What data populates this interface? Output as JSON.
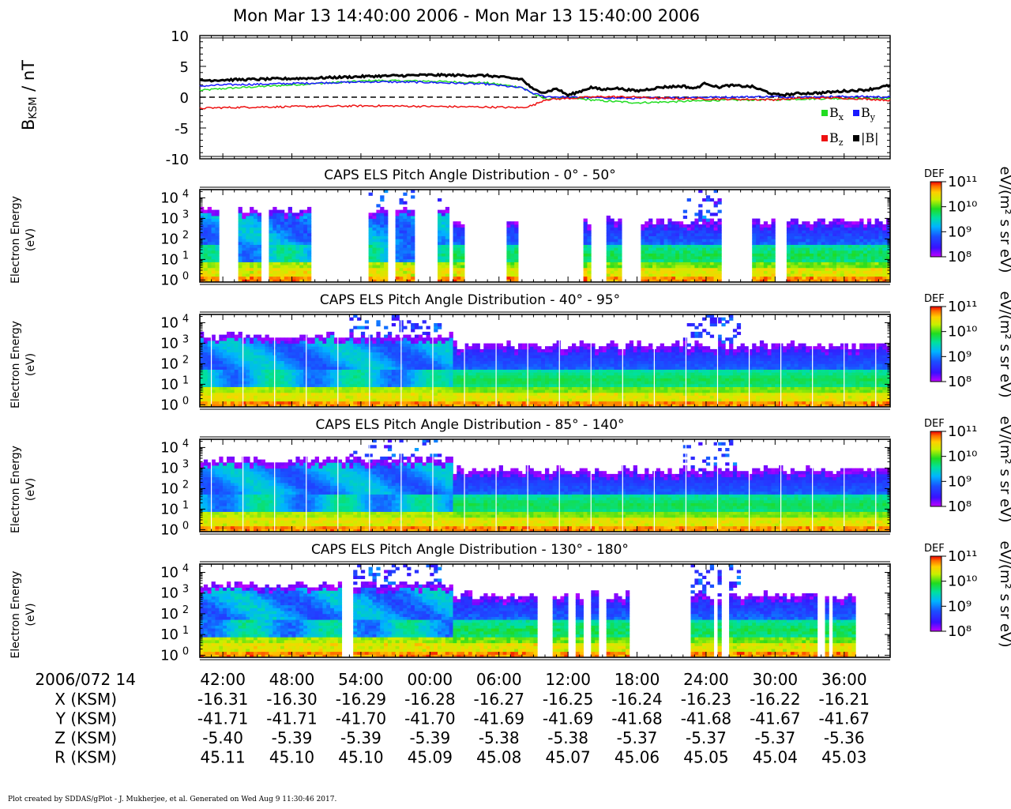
{
  "title": "Mon Mar 13 14:40:00 2006 - Mon Mar 13 15:40:00 2006",
  "footer": "Plot created by SDDAS/gPlot - J. Mukherjee, et al.  Generated on Wed Aug 9 11:30:46 2017.",
  "colors": {
    "bx": "#22dd22",
    "by": "#1a1aff",
    "bz": "#ee1111",
    "btot": "#000000"
  },
  "chart_data": [
    {
      "type": "line",
      "ylabel": "BKSM / nT",
      "ylabel_main": "B",
      "ylabel_sub": "KSM",
      "ylabel_unit": " / nT",
      "ylim": [
        -10,
        10
      ],
      "yticks": [
        "10",
        "5",
        "0",
        "-5",
        "-10"
      ],
      "xlim_minutes": [
        0,
        60
      ],
      "zero_line": "dashed",
      "legend_position": "bottom-right",
      "legend": [
        {
          "main": "B",
          "sub": "x"
        },
        {
          "main": "B",
          "sub": "y"
        },
        {
          "main": "B",
          "sub": "z"
        },
        {
          "main": "|B|",
          "sub": ""
        }
      ],
      "series": [
        {
          "name": "Bx",
          "x": [
            0,
            2,
            5,
            10,
            15,
            20,
            25,
            28,
            29,
            30,
            32,
            35,
            38,
            40,
            45,
            50,
            52,
            55,
            58,
            60
          ],
          "y": [
            1.1,
            1.4,
            1.7,
            2.2,
            2.7,
            2.6,
            2.3,
            1.6,
            0.5,
            -0.3,
            -0.1,
            -0.6,
            -0.9,
            -0.8,
            -0.5,
            -0.4,
            -0.3,
            -0.2,
            -0.2,
            -0.3
          ]
        },
        {
          "name": "By",
          "x": [
            0,
            2,
            5,
            10,
            15,
            20,
            25,
            28,
            29,
            30,
            32,
            35,
            38,
            40,
            45,
            50,
            52,
            55,
            58,
            60
          ],
          "y": [
            1.8,
            2.0,
            2.1,
            2.3,
            2.5,
            2.4,
            2.1,
            1.5,
            0.6,
            0.1,
            0.0,
            -0.1,
            -0.2,
            -0.1,
            0.0,
            0.1,
            0.0,
            0.1,
            0.1,
            0.0
          ]
        },
        {
          "name": "Bz",
          "x": [
            0,
            2,
            5,
            10,
            15,
            20,
            25,
            28,
            29,
            30,
            32,
            35,
            38,
            40,
            45,
            50,
            52,
            55,
            58,
            60
          ],
          "y": [
            -1.8,
            -1.7,
            -1.6,
            -1.5,
            -1.4,
            -1.5,
            -1.6,
            -1.7,
            -1.3,
            -0.4,
            -0.2,
            0.1,
            0.0,
            -0.2,
            -0.3,
            -0.4,
            -0.2,
            -0.1,
            -0.3,
            -0.5
          ]
        },
        {
          "name": "|B|",
          "x": [
            0,
            2,
            5,
            10,
            15,
            20,
            25,
            28,
            29,
            30,
            31,
            32,
            33,
            34,
            35,
            36,
            38,
            40,
            42,
            43,
            44,
            45,
            46,
            48,
            50,
            51,
            52,
            54,
            56,
            58,
            60
          ],
          "y": [
            2.7,
            2.8,
            2.9,
            3.1,
            3.4,
            3.6,
            3.5,
            2.9,
            1.2,
            0.8,
            1.4,
            0.3,
            0.9,
            1.6,
            1.2,
            1.5,
            1.0,
            1.6,
            1.8,
            1.4,
            2.3,
            1.6,
            1.9,
            1.7,
            0.4,
            0.4,
            0.6,
            0.7,
            1.0,
            1.2,
            1.9
          ]
        }
      ]
    },
    {
      "type": "heatmap",
      "title": "CAPS ELS Pitch Angle Distribution - 0° - 50°",
      "ylabel": "Electron Energy (eV)",
      "ylabel_line1": "Electron Energy",
      "ylabel_line2": "(eV)",
      "y_scale": "log",
      "ylim_log10": [
        -0.1,
        4.4
      ],
      "yticks_exp": [
        "4",
        "3",
        "2",
        "1",
        "0"
      ],
      "data_gaps_minutes": [
        [
          1.6,
          3.4
        ],
        [
          5.2,
          6.1
        ],
        [
          9.6,
          14.8
        ],
        [
          16.2,
          16.9
        ],
        [
          18.8,
          20.7
        ],
        [
          21.6,
          22.1
        ],
        [
          23.1,
          26.6
        ],
        [
          27.7,
          33.3
        ],
        [
          34.0,
          35.4
        ],
        [
          36.7,
          38.2
        ],
        [
          45.4,
          48.0
        ],
        [
          50.0,
          51.1
        ]
      ],
      "variability": "patchy",
      "colorbar_label": "DEF",
      "colorbar_unit": "eV/(m² s sr eV)",
      "colorbar_ticks": [
        "10¹¹",
        "10¹⁰",
        "10⁹",
        "10⁸"
      ]
    },
    {
      "type": "heatmap",
      "title": "CAPS ELS Pitch Angle Distribution - 40° - 95°",
      "ylabel": "Electron Energy (eV)",
      "ylabel_line1": "Electron Energy",
      "ylabel_line2": "(eV)",
      "y_scale": "log",
      "ylim_log10": [
        -0.1,
        4.4
      ],
      "yticks_exp": [
        "4",
        "3",
        "2",
        "1",
        "0"
      ],
      "data_gaps_minutes": [],
      "variability": "smooth",
      "colorbar_label": "DEF",
      "colorbar_unit": "eV/(m² s sr eV)",
      "colorbar_ticks": [
        "10¹¹",
        "10¹⁰",
        "10⁹",
        "10⁸"
      ]
    },
    {
      "type": "heatmap",
      "title": "CAPS ELS Pitch Angle Distribution - 85° - 140°",
      "ylabel": "Electron Energy (eV)",
      "ylabel_line1": "Electron Energy",
      "ylabel_line2": "(eV)",
      "y_scale": "log",
      "ylim_log10": [
        -0.1,
        4.4
      ],
      "yticks_exp": [
        "4",
        "3",
        "2",
        "1",
        "0"
      ],
      "data_gaps_minutes": [],
      "variability": "smooth",
      "colorbar_label": "DEF",
      "colorbar_unit": "eV/(m² s sr eV)",
      "colorbar_ticks": [
        "10¹¹",
        "10¹⁰",
        "10⁹",
        "10⁸"
      ]
    },
    {
      "type": "heatmap",
      "title": "CAPS ELS Pitch Angle Distribution - 130° - 180°",
      "ylabel": "Electron Energy (eV)",
      "ylabel_line1": "Electron Energy",
      "ylabel_line2": "(eV)",
      "y_scale": "log",
      "ylim_log10": [
        -0.1,
        4.4
      ],
      "yticks_exp": [
        "4",
        "3",
        "2",
        "1",
        "0"
      ],
      "data_gaps_minutes": [
        [
          12.2,
          13.4
        ],
        [
          29.5,
          30.6
        ],
        [
          32.0,
          32.8
        ],
        [
          33.4,
          34.1
        ],
        [
          34.6,
          35.4
        ],
        [
          37.2,
          42.7
        ],
        [
          44.6,
          45.0
        ],
        [
          45.5,
          46.1
        ],
        [
          53.7,
          54.2
        ],
        [
          54.7,
          55.0
        ],
        [
          57.1,
          60
        ]
      ],
      "variability": "patchy",
      "colorbar_label": "DEF",
      "colorbar_unit": "eV/(m² s sr eV)",
      "colorbar_ticks": [
        "10¹¹",
        "10¹⁰",
        "10⁹",
        "10⁸"
      ]
    }
  ],
  "x_axis": {
    "date_label": "2006/072 14",
    "tick_minutes": [
      2,
      8,
      14,
      20,
      26,
      32,
      38,
      44,
      50,
      56
    ],
    "ticks": [
      "42:00",
      "48:00",
      "54:00",
      "00:00",
      "06:00",
      "12:00",
      "18:00",
      "24:00",
      "30:00",
      "36:00"
    ]
  },
  "ephemeris": [
    {
      "label": "X (KSM)",
      "values": [
        "-16.31",
        "-16.30",
        "-16.29",
        "-16.28",
        "-16.27",
        "-16.25",
        "-16.24",
        "-16.23",
        "-16.22",
        "-16.21"
      ]
    },
    {
      "label": "Y (KSM)",
      "values": [
        "-41.71",
        "-41.71",
        "-41.70",
        "-41.70",
        "-41.69",
        "-41.69",
        "-41.68",
        "-41.68",
        "-41.67",
        "-41.67"
      ]
    },
    {
      "label": "Z (KSM)",
      "values": [
        "-5.40",
        "-5.39",
        "-5.39",
        "-5.39",
        "-5.38",
        "-5.38",
        "-5.37",
        "-5.37",
        "-5.37",
        "-5.36"
      ]
    },
    {
      "label": "R (KSM)",
      "values": [
        "45.11",
        "45.10",
        "45.10",
        "45.09",
        "45.08",
        "45.07",
        "45.06",
        "45.05",
        "45.04",
        "45.03"
      ]
    }
  ]
}
